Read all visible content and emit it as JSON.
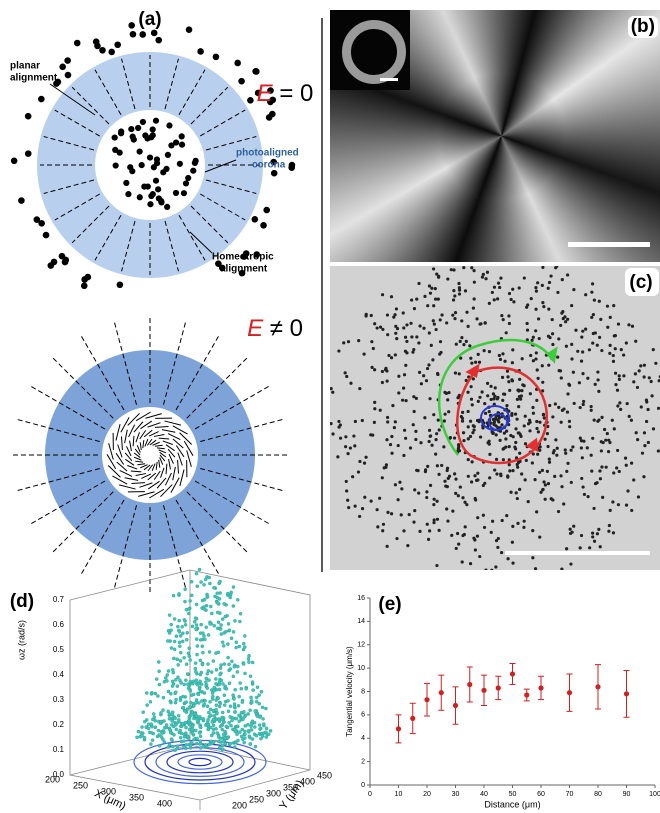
{
  "panels": {
    "a": {
      "label": "(a)",
      "eq1_var": "E",
      "eq1_rest": " = 0",
      "eq2_var": "E",
      "eq2_rest": " ≠ 0",
      "planar": [
        "planar",
        "alignment"
      ],
      "corona": [
        "photoaligned",
        "corona"
      ],
      "homeotropic": [
        "Homeotropic",
        "alignment"
      ]
    },
    "b": {
      "label": "(b)"
    },
    "c": {
      "label": "(c)"
    },
    "d": {
      "label": "(d)",
      "z_label": "ωz (rad/s)",
      "z_ticks": [
        "0.0",
        "0.1",
        "0.2",
        "0.3",
        "0.4",
        "0.5",
        "0.6",
        "0.7"
      ],
      "x_label": "X (μm)",
      "x_ticks": [
        "200",
        "250",
        "300",
        "350",
        "400"
      ],
      "y_label": "Y (μm)",
      "y_ticks": [
        "200",
        "250",
        "300",
        "350",
        "400",
        "450"
      ]
    }
  },
  "chart_data": {
    "type": "errorbar",
    "label": "(e)",
    "x_label": "Distance (μm)",
    "y_label": "Tangential velocity (μm/s)",
    "x": [
      10,
      15,
      20,
      25,
      30,
      35,
      40,
      45,
      50,
      55,
      60,
      70,
      80,
      90
    ],
    "values": [
      4.8,
      5.7,
      7.3,
      7.9,
      6.8,
      8.6,
      8.1,
      8.3,
      9.5,
      7.7,
      8.3,
      7.9,
      8.4,
      7.8
    ],
    "errors": [
      1.2,
      1.3,
      1.4,
      1.5,
      1.6,
      1.5,
      1.3,
      1.0,
      0.9,
      0.5,
      1.0,
      1.6,
      1.9,
      2.0
    ],
    "color": "#cc2222",
    "xlim": [
      0,
      100
    ],
    "xticks": [
      0,
      10,
      20,
      30,
      40,
      50,
      60,
      70,
      80,
      90,
      100
    ],
    "ylim": [
      0,
      16
    ],
    "yticks": [
      0,
      2,
      4,
      6,
      8,
      10,
      12,
      14,
      16
    ]
  }
}
